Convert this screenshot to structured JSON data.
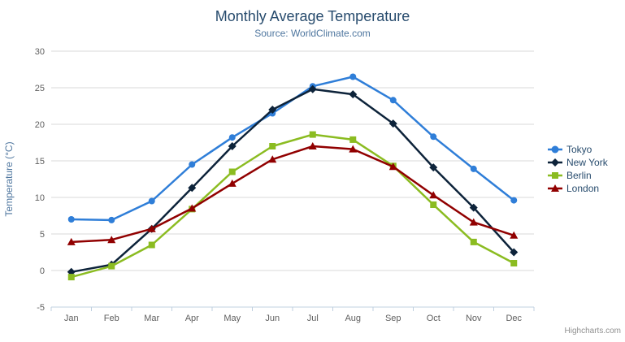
{
  "header": {
    "title": "Monthly Average Temperature",
    "subtitle": "Source: WorldClimate.com"
  },
  "toolbar": {
    "export_menu_icon": "hamburger-menu-icon"
  },
  "credits": "Highcharts.com",
  "colors": {
    "title": "#274b6d",
    "subtitle": "#4d759e",
    "axis_label": "#606060",
    "axis_title": "#4d759e",
    "grid_line": "#d8d8d8",
    "axis_line": "#c0d0e0",
    "legend_text": "#274b6d",
    "credits_text": "#909090"
  },
  "chart_data": {
    "type": "line",
    "title": "Monthly Average Temperature",
    "subtitle": "Source: WorldClimate.com",
    "categories": [
      "Jan",
      "Feb",
      "Mar",
      "Apr",
      "May",
      "Jun",
      "Jul",
      "Aug",
      "Sep",
      "Oct",
      "Nov",
      "Dec"
    ],
    "series": [
      {
        "name": "Tokyo",
        "color": "#2f7ed8",
        "marker": "circle",
        "values": [
          7.0,
          6.9,
          9.5,
          14.5,
          18.2,
          21.5,
          25.2,
          26.5,
          23.3,
          18.3,
          13.9,
          9.6
        ]
      },
      {
        "name": "New York",
        "color": "#0d233a",
        "marker": "diamond",
        "values": [
          -0.2,
          0.8,
          5.7,
          11.3,
          17.0,
          22.0,
          24.8,
          24.1,
          20.1,
          14.1,
          8.6,
          2.5
        ]
      },
      {
        "name": "Berlin",
        "color": "#8bbc21",
        "marker": "square",
        "values": [
          -0.9,
          0.6,
          3.5,
          8.4,
          13.5,
          17.0,
          18.6,
          17.9,
          14.3,
          9.0,
          3.9,
          1.0
        ]
      },
      {
        "name": "London",
        "color": "#910000",
        "marker": "triangle",
        "values": [
          3.9,
          4.2,
          5.7,
          8.5,
          11.9,
          15.2,
          17.0,
          16.6,
          14.2,
          10.3,
          6.6,
          4.8
        ]
      }
    ],
    "xlabel": "",
    "ylabel": "Temperature (°C)",
    "ylim": [
      -5,
      30
    ],
    "ytick_step": 5,
    "yticks": [
      -5,
      0,
      5,
      10,
      15,
      20,
      25,
      30
    ],
    "grid": true,
    "legend_position": "right"
  }
}
